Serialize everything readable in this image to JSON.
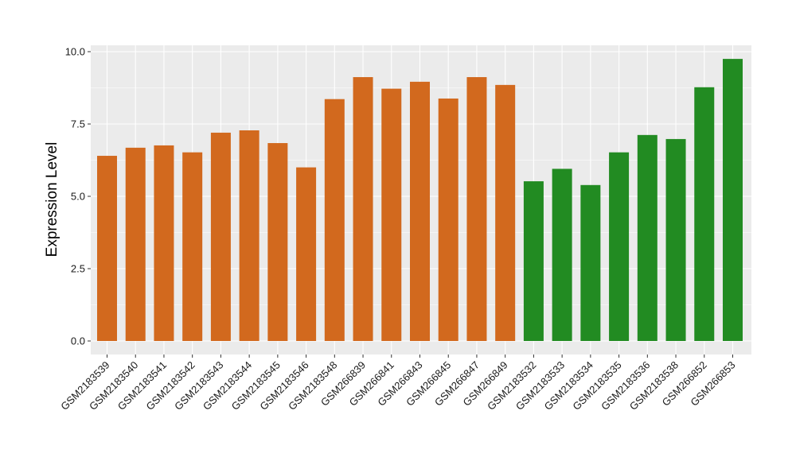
{
  "chart_data": {
    "type": "bar",
    "title": "",
    "xlabel": "",
    "ylabel": "Expression Level",
    "ylim": [
      0,
      10
    ],
    "yticks": [
      "0.0",
      "2.5",
      "5.0",
      "7.5",
      "10.0"
    ],
    "grid": true,
    "legend": "none",
    "colors": {
      "group1": "#d2691e",
      "group2": "#228b22"
    },
    "categories": [
      "GSM2183539",
      "GSM2183540",
      "GSM2183541",
      "GSM2183542",
      "GSM2183543",
      "GSM2183544",
      "GSM2183545",
      "GSM2183546",
      "GSM2183548",
      "GSM266839",
      "GSM266841",
      "GSM266843",
      "GSM266845",
      "GSM266847",
      "GSM266849",
      "GSM2183532",
      "GSM2183533",
      "GSM2183534",
      "GSM2183535",
      "GSM2183536",
      "GSM2183538",
      "GSM266852",
      "GSM266853"
    ],
    "values": [
      6.4,
      6.68,
      6.76,
      6.52,
      7.2,
      7.28,
      6.84,
      6.0,
      8.36,
      9.12,
      8.72,
      8.96,
      8.38,
      9.12,
      8.85,
      5.52,
      5.95,
      5.39,
      6.52,
      7.12,
      6.98,
      8.77,
      9.75
    ],
    "groups": [
      "group1",
      "group1",
      "group1",
      "group1",
      "group1",
      "group1",
      "group1",
      "group1",
      "group1",
      "group1",
      "group1",
      "group1",
      "group1",
      "group1",
      "group1",
      "group2",
      "group2",
      "group2",
      "group2",
      "group2",
      "group2",
      "group2",
      "group2"
    ]
  }
}
